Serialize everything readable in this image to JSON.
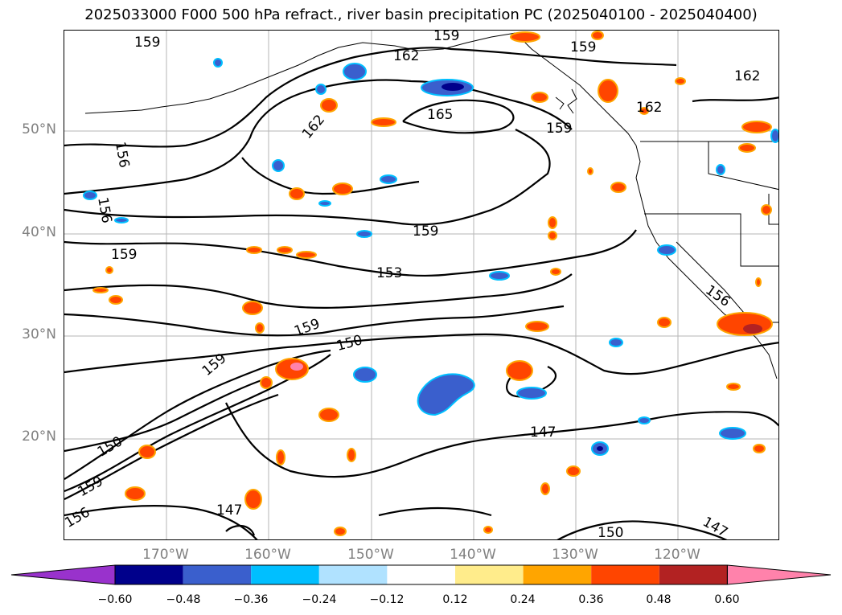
{
  "title": "2025033000 F000 500 hPa refract., river basin precipitation PC (2025040100 - 2025040400)",
  "lat_labels": [
    "50°N",
    "40°N",
    "30°N",
    "20°N"
  ],
  "lon_labels": [
    "170°W",
    "160°W",
    "150°W",
    "140°W",
    "130°W",
    "120°W"
  ],
  "colorbar": {
    "colors": [
      "#9932cc",
      "#00008b",
      "#3a5fcd",
      "#00bfff",
      "#b0e2ff",
      "#ffffff",
      "#ffec8b",
      "#ffa500",
      "#ff4500",
      "#b22222",
      "#ff82ab"
    ],
    "tick_labels": [
      "−0.60",
      "−0.48",
      "−0.36",
      "−0.24",
      "−0.12",
      "0.12",
      "0.24",
      "0.36",
      "0.48",
      "0.60"
    ]
  },
  "contour_labels": [
    "159",
    "162",
    "159",
    "159",
    "162",
    "165",
    "159",
    "162",
    "162",
    "156",
    "156",
    "159",
    "159",
    "153",
    "159",
    "150",
    "159",
    "156",
    "147",
    "150",
    "159",
    "147",
    "150",
    "147",
    "156"
  ]
}
